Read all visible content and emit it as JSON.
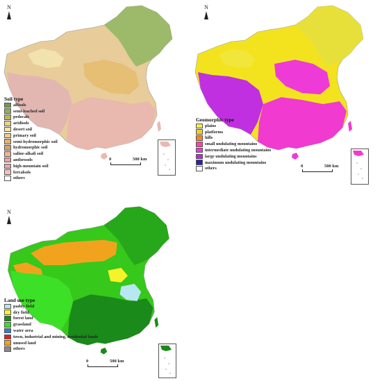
{
  "maps": [
    {
      "id": "soil",
      "north": "N",
      "legend_title": "Soil type",
      "scale": {
        "zero": "0",
        "distance": "500 km"
      },
      "base_color": "#e8cc9a",
      "colors": {
        "north": "#9cba6a",
        "center": "#e6be74",
        "west": "#e3b7b1",
        "south": "#e9b8ae",
        "tarim": "#f2e2ae"
      },
      "legend": [
        {
          "label": "alfisols",
          "color": "#6f9d4f"
        },
        {
          "label": "semi-leached soil",
          "color": "#93ad5f"
        },
        {
          "label": "pedocals",
          "color": "#bdb55c"
        },
        {
          "label": "aridisols",
          "color": "#e9d57c"
        },
        {
          "label": "desert soil",
          "color": "#f4e6a5"
        },
        {
          "label": "primary soil",
          "color": "#f1cf8a"
        },
        {
          "label": "semi-hydromorphic soil",
          "color": "#e6b270"
        },
        {
          "label": "hydromorphic soil",
          "color": "#d6a06b"
        },
        {
          "label": "saline-alkali soil",
          "color": "#efb492"
        },
        {
          "label": "anthrosols",
          "color": "#e8a79a"
        },
        {
          "label": "high-mountain soil",
          "color": "#e2a9ae"
        },
        {
          "label": "ferralsols",
          "color": "#f2c4c0"
        },
        {
          "label": "others",
          "color": "#ffffff"
        }
      ]
    },
    {
      "id": "geomorphic",
      "north": "N",
      "legend_title": "Geomorphic type",
      "scale": {
        "zero": "0",
        "distance": "500 km"
      },
      "base_color": "#f3e31f",
      "colors": {
        "north": "#e8e03a",
        "center": "#ee3ad6",
        "west": "#c030e0",
        "south": "#f03ad0",
        "tarim": "#f2e63a"
      },
      "legend": [
        {
          "label": "plains",
          "color": "#f5ee4a"
        },
        {
          "label": "platforms",
          "color": "#f2cd2e"
        },
        {
          "label": "hills",
          "color": "#f28a26"
        },
        {
          "label": "small undulating mountains",
          "color": "#f04aa4"
        },
        {
          "label": "intermediate undulating mountains",
          "color": "#e83ae0"
        },
        {
          "label": "large undulating mountains",
          "color": "#b82ad8"
        },
        {
          "label": "maximum undulating mountains",
          "color": "#2c1fa8"
        },
        {
          "label": "others",
          "color": "#ffffff"
        }
      ]
    },
    {
      "id": "landuse",
      "north": "N",
      "legend_title": "Land use type",
      "scale": {
        "zero": "0",
        "distance": "500 km"
      },
      "base_color": "#36c81a",
      "colors": {
        "north": "#f2a31e",
        "center": "#26a81a",
        "west": "#3ce026",
        "south": "#1a8a1a",
        "tarim": "#f2a31e"
      },
      "legend": [
        {
          "label": "paddy field",
          "color": "#b8e6f2"
        },
        {
          "label": "dry field",
          "color": "#f5f32a"
        },
        {
          "label": "forest land",
          "color": "#1a8a1a"
        },
        {
          "label": "grassland",
          "color": "#3ce026"
        },
        {
          "label": "water area",
          "color": "#2a7fe0"
        },
        {
          "label": "town, industrial and mining, residential lands",
          "color": "#e8201a"
        },
        {
          "label": "unused land",
          "color": "#f2a31e"
        },
        {
          "label": "others",
          "color": "#8a8a8a"
        }
      ]
    }
  ]
}
